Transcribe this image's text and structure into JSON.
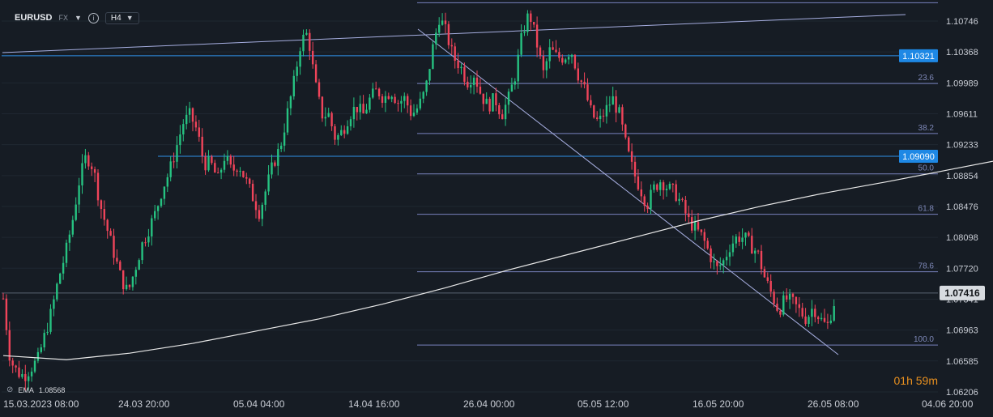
{
  "header": {
    "symbol": "EURUSD",
    "market": "FX",
    "timeframe": "H4",
    "caret": "▼",
    "info_glyph": "i"
  },
  "indicator": {
    "icon": "eye-slash-icon",
    "name": "EMA",
    "value": "1.08568"
  },
  "countdown": {
    "hours": "01",
    "h_unit": "h",
    "minutes": "59",
    "m_unit": "m"
  },
  "colors": {
    "background": "#161c24",
    "bull": "#26c281",
    "bear": "#f0445a",
    "ema": "#e8e8e8",
    "hline": "#2f8fe6",
    "fib": "#8a94d8",
    "trendline": "#a6aee0",
    "label_active": "#1e88e5",
    "countdown": "#e8901f"
  },
  "chart_data": {
    "type": "candlestick",
    "symbol": "EURUSD",
    "timeframe": "H4",
    "x_axis": {
      "tick_labels": [
        "15.03.2023 08:00",
        "24.03 20:00",
        "05.04 04:00",
        "14.04 16:00",
        "26.04 00:00",
        "05.05 12:00",
        "16.05 20:00",
        "26.05 08:00",
        "04.06 20:00"
      ]
    },
    "y_axis": {
      "range": [
        1.0612,
        1.1112
      ],
      "tick_labels": [
        "1.10746",
        "1.10368",
        "1.09989",
        "1.09611",
        "1.09233",
        "1.08854",
        "1.08476",
        "1.08098",
        "1.07720",
        "1.07341",
        "1.06963",
        "1.06585",
        "1.06206"
      ],
      "position": "right"
    },
    "current_price": "1.07416",
    "price_labels": [
      "1.10321",
      "1.09090"
    ],
    "horizontal_lines": [
      1.10321,
      1.0909
    ],
    "fibonacci": {
      "high": 1.1097,
      "low": 1.0678,
      "levels": [
        "0.0",
        "23.6",
        "38.2",
        "50.0",
        "61.8",
        "78.6",
        "100.0"
      ]
    },
    "series": [
      {
        "kind": "ohlc",
        "direction": "up",
        "values": [
          [
            0,
            1.0735,
            1.0745,
            1.0632,
            1.0645
          ],
          [
            4,
            1.0645,
            1.0662,
            1.0628,
            1.0658
          ],
          [
            8,
            1.0658,
            1.0668,
            1.0638,
            1.0642
          ],
          [
            12,
            1.0642,
            1.0672,
            1.0625,
            1.0665
          ],
          [
            16,
            1.0665,
            1.0668,
            1.063,
            1.0638
          ],
          [
            20,
            1.0638,
            1.066,
            1.0625,
            1.0655
          ],
          [
            24,
            1.0655,
            1.0675,
            1.064,
            1.067
          ],
          [
            28,
            1.067,
            1.0682,
            1.0655,
            1.066
          ],
          [
            32,
            1.066,
            1.069,
            1.065,
            1.0685
          ],
          [
            36,
            1.0685,
            1.0725,
            1.0675,
            1.0718
          ],
          [
            40,
            1.0718,
            1.073,
            1.069,
            1.07
          ],
          [
            44,
            1.07,
            1.071,
            1.0685,
            1.0705
          ],
          [
            48,
            1.0705,
            1.076,
            1.0695,
            1.0752
          ],
          [
            52,
            1.0752,
            1.0785,
            1.0745,
            1.0778
          ],
          [
            56,
            1.0778,
            1.079,
            1.076,
            1.077
          ],
          [
            60,
            1.077,
            1.0785,
            1.0755,
            1.0765
          ],
          [
            64,
            1.0765,
            1.078,
            1.075,
            1.0775
          ],
          [
            68,
            1.0775,
            1.08,
            1.0765,
            1.0795
          ],
          [
            72,
            1.0795,
            1.0805,
            1.0785,
            1.079
          ],
          [
            76,
            1.079,
            1.083,
            1.078,
            1.0822
          ],
          [
            80,
            1.0822,
            1.085,
            1.081,
            1.0842
          ],
          [
            84,
            1.0842,
            1.0895,
            1.0835,
            1.0885
          ],
          [
            88,
            1.0885,
            1.091,
            1.087,
            1.0895
          ],
          [
            92,
            1.0895,
            1.0915,
            1.088,
            1.0905
          ],
          [
            96,
            1.0905,
            1.091,
            1.0875,
            1.088
          ],
          [
            100,
            1.088,
            1.089,
            1.086,
            1.087
          ],
          [
            104,
            1.087,
            1.0878,
            1.0845,
            1.085
          ],
          [
            108,
            1.085,
            1.086,
            1.0825,
            1.083
          ],
          [
            112,
            1.083,
            1.0838,
            1.081,
            1.0815
          ],
          [
            116,
            1.0815,
            1.0825,
            1.08,
            1.081
          ],
          [
            120,
            1.081,
            1.0815,
            1.078,
            1.079
          ],
          [
            124,
            1.079,
            1.08,
            1.076,
            1.077
          ],
          [
            128,
            1.077,
            1.078,
            1.0735,
            1.0742
          ],
          [
            132,
            1.0742,
            1.0775,
            1.073,
            1.0768
          ],
          [
            136,
            1.0768,
            1.079,
            1.076,
            1.0785
          ],
          [
            140,
            1.0785,
            1.08,
            1.0775,
            1.0795
          ],
          [
            144,
            1.0795,
            1.0815,
            1.0785,
            1.0808
          ],
          [
            148,
            1.0808,
            1.0825,
            1.08,
            1.082
          ],
          [
            152,
            1.082,
            1.0835,
            1.081,
            1.083
          ],
          [
            156,
            1.083,
            1.084,
            1.0815,
            1.0825
          ],
          [
            160,
            1.0825,
            1.0845,
            1.082,
            1.084
          ],
          [
            164,
            1.084,
            1.0855,
            1.083,
            1.085
          ],
          [
            168,
            1.085,
            1.086,
            1.0835,
            1.0845
          ],
          [
            172,
            1.0845,
            1.087,
            1.084,
            1.0862
          ],
          [
            176,
            1.0862,
            1.088,
            1.0855,
            1.0875
          ],
          [
            180,
            1.0875,
            1.089,
            1.0865,
            1.0882
          ],
          [
            184,
            1.0882,
            1.0895,
            1.087,
            1.0888
          ],
          [
            188,
            1.0888,
            1.09,
            1.088,
            1.0895
          ],
          [
            192,
            1.0895,
            1.092,
            1.089,
            1.0915
          ],
          [
            196,
            1.0915,
            1.093,
            1.0905,
            1.0925
          ],
          [
            200,
            1.0925,
            1.0935,
            1.0915,
            1.092
          ],
          [
            204,
            1.092,
            1.0935,
            1.0905,
            1.0912
          ],
          [
            208,
            1.0912,
            1.0925,
            1.0895,
            1.0908
          ],
          [
            212,
            1.0908,
            1.094,
            1.09,
            1.0935
          ],
          [
            216,
            1.0935,
            1.0945,
            1.092,
            1.0925
          ],
          [
            220,
            1.0925,
            1.0932,
            1.09,
            1.091
          ],
          [
            224,
            1.091,
            1.0922,
            1.088,
            1.089
          ],
          [
            228,
            1.089,
            1.0905,
            1.087,
            1.0878
          ],
          [
            232,
            1.0878,
            1.088,
            1.0845,
            1.085
          ],
          [
            236,
            1.085,
            1.0865,
            1.082,
            1.083
          ],
          [
            240,
            1.083,
            1.084,
            1.0795,
            1.0805
          ]
        ]
      }
    ],
    "ema_points": [
      [
        0,
        1.0665
      ],
      [
        20,
        1.066
      ],
      [
        40,
        1.0668
      ],
      [
        60,
        1.068
      ],
      [
        80,
        1.0695
      ],
      [
        100,
        1.071
      ],
      [
        120,
        1.0728
      ],
      [
        140,
        1.0748
      ],
      [
        160,
        1.077
      ],
      [
        180,
        1.079
      ],
      [
        200,
        1.081
      ],
      [
        220,
        1.083
      ],
      [
        240,
        1.0848
      ],
      [
        260,
        1.0864
      ],
      [
        280,
        1.0878
      ],
      [
        300,
        1.0893
      ],
      [
        320,
        1.0908
      ],
      [
        340,
        1.0922
      ],
      [
        360,
        1.0933
      ],
      [
        380,
        1.094
      ],
      [
        400,
        1.0942
      ],
      [
        420,
        1.0938
      ],
      [
        440,
        1.0928
      ],
      [
        460,
        1.0912
      ],
      [
        480,
        1.0893
      ],
      [
        500,
        1.0873
      ],
      [
        520,
        1.0855
      ]
    ],
    "description_note": ""
  }
}
